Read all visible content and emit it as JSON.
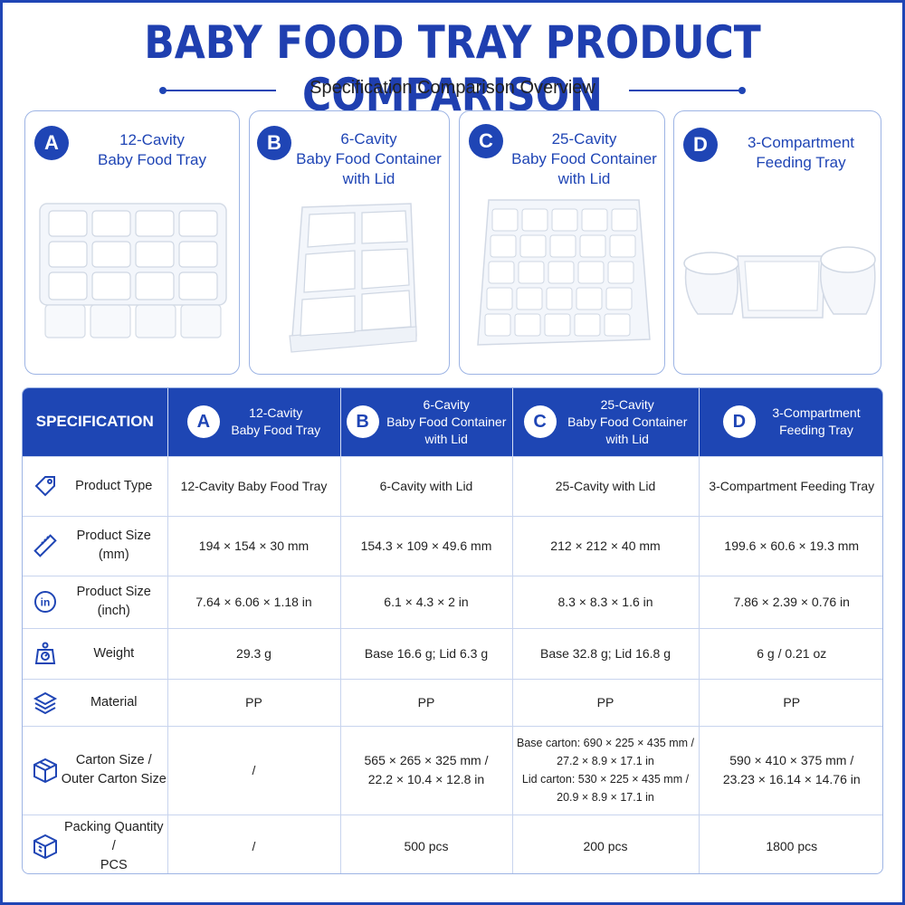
{
  "title": "BABY FOOD TRAY PRODUCT COMPARISON",
  "subtitle": "Specification Comparison Overview",
  "products": [
    {
      "letter": "A",
      "name_lines": [
        "12-Cavity",
        "Baby Food Tray"
      ]
    },
    {
      "letter": "B",
      "name_lines": [
        "6-Cavity",
        "Baby Food Container",
        "with Lid"
      ]
    },
    {
      "letter": "C",
      "name_lines": [
        "25-Cavity",
        "Baby Food Container",
        "with Lid"
      ]
    },
    {
      "letter": "D",
      "name_lines": [
        "3-Compartment",
        "Feeding Tray"
      ]
    }
  ],
  "table": {
    "spec_header": "SPECIFICATION",
    "rows": [
      {
        "icon": "tag-icon",
        "label_lines": [
          "Product Type"
        ],
        "values": [
          [
            "12-Cavity Baby Food Tray"
          ],
          [
            "6-Cavity with Lid"
          ],
          [
            "25-Cavity with Lid"
          ],
          [
            "3-Compartment Feeding Tray"
          ]
        ]
      },
      {
        "icon": "ruler-icon",
        "label_lines": [
          "Product Size (mm)"
        ],
        "values": [
          [
            "194 × 154 × 30 mm"
          ],
          [
            "154.3 × 109 × 49.6 mm"
          ],
          [
            "212 × 212 × 40 mm"
          ],
          [
            "199.6 × 60.6 × 19.3 mm"
          ]
        ]
      },
      {
        "icon": "inch-icon",
        "label_lines": [
          "Product Size (inch)"
        ],
        "values": [
          [
            "7.64 × 6.06 × 1.18 in"
          ],
          [
            "6.1 × 4.3 × 2 in"
          ],
          [
            "8.3 × 8.3 × 1.6 in"
          ],
          [
            "7.86 × 2.39 × 0.76 in"
          ]
        ]
      },
      {
        "icon": "scale-icon",
        "label_lines": [
          "Weight"
        ],
        "values": [
          [
            "29.3 g"
          ],
          [
            "Base 16.6 g; Lid 6.3 g"
          ],
          [
            "Base 32.8 g; Lid 16.8 g"
          ],
          [
            "6 g / 0.21 oz"
          ]
        ]
      },
      {
        "icon": "layers-icon",
        "label_lines": [
          "Material"
        ],
        "values": [
          [
            "PP"
          ],
          [
            "PP"
          ],
          [
            "PP"
          ],
          [
            "PP"
          ]
        ]
      },
      {
        "icon": "box-icon",
        "label_lines": [
          "Carton Size /",
          "Outer Carton Size"
        ],
        "values": [
          [
            "/"
          ],
          [
            "565 × 265 × 325 mm /",
            "22.2 × 10.4 × 12.8 in"
          ],
          [
            "Base carton:  690 × 225 × 435 mm /",
            "27.2 × 8.9 × 17.1 in",
            "Lid carton:  530 × 225 × 435 mm /",
            "20.9 × 8.9 × 17.1 in"
          ],
          [
            "590 × 410 × 375 mm /",
            "23.23 × 16.14 × 14.76 in"
          ]
        ]
      },
      {
        "icon": "package-icon",
        "label_lines": [
          "Packing Quantity /",
          "PCS"
        ],
        "values": [
          [
            "/"
          ],
          [
            "500 pcs"
          ],
          [
            "200 pcs"
          ],
          [
            "1800 pcs"
          ]
        ]
      }
    ]
  },
  "colors": {
    "accent": "#1f45b5",
    "header_bg": "#1e46b4",
    "border": "#9db4e4"
  }
}
